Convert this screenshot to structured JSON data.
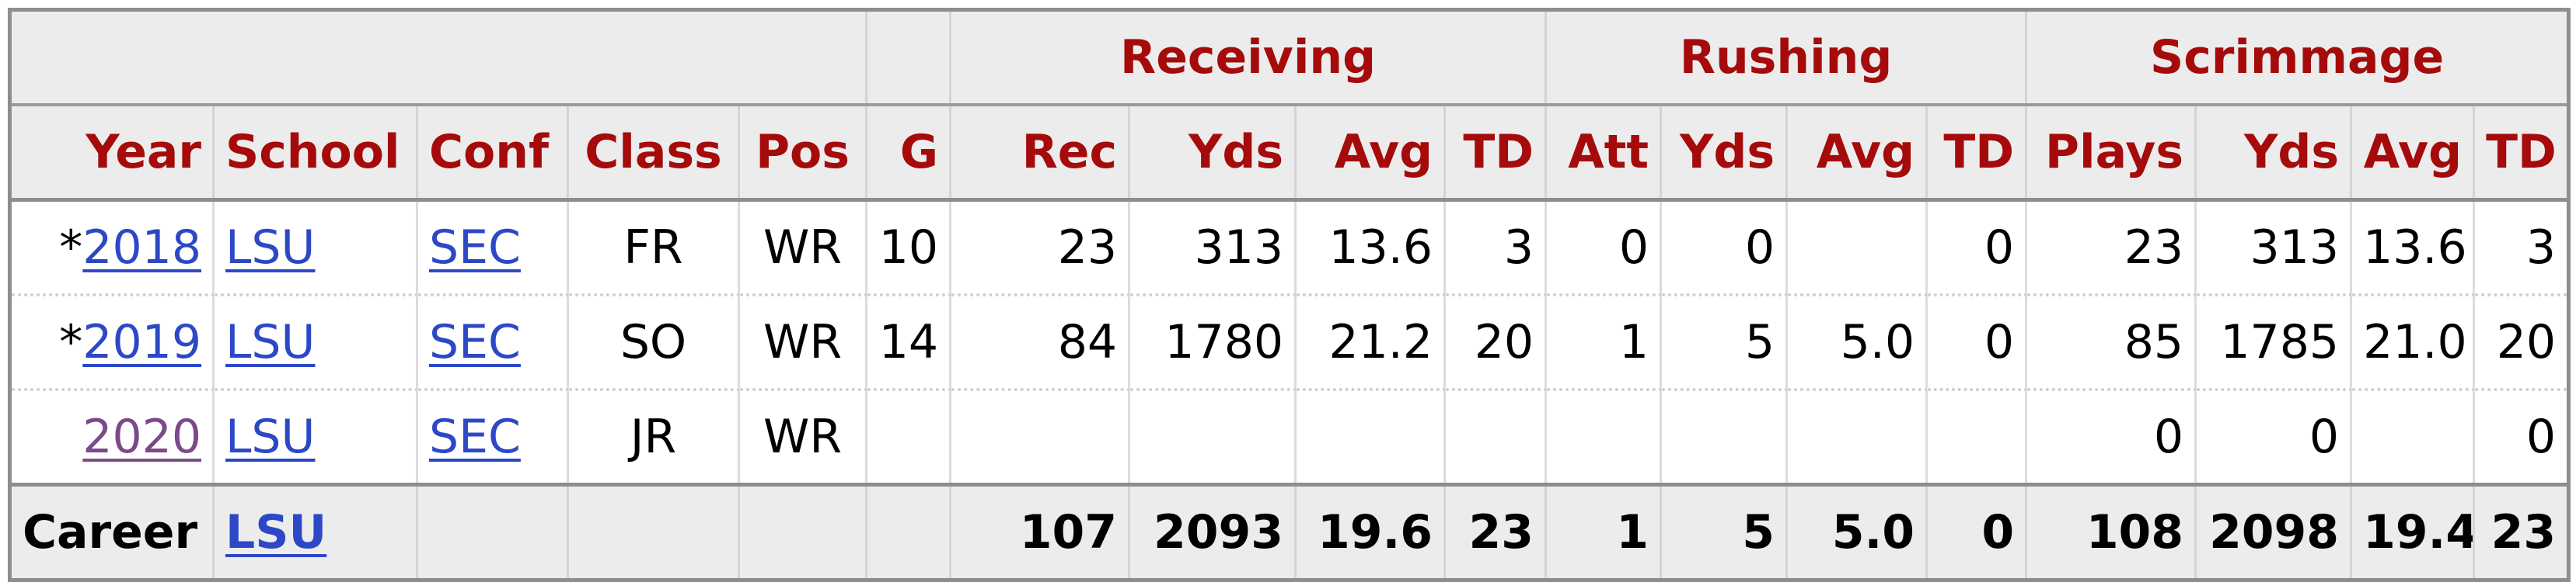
{
  "over_header": {
    "receiving": "Receiving",
    "rushing": "Rushing",
    "scrimmage": "Scrimmage"
  },
  "columns": {
    "year": "Year",
    "school": "School",
    "conf": "Conf",
    "class": "Class",
    "pos": "Pos",
    "g": "G",
    "rec": "Rec",
    "rec_yds": "Yds",
    "rec_avg": "Avg",
    "rec_td": "TD",
    "rush_att": "Att",
    "rush_yds": "Yds",
    "rush_avg": "Avg",
    "rush_td": "TD",
    "plays": "Plays",
    "scrim_yds": "Yds",
    "scrim_avg": "Avg",
    "scrim_td": "TD"
  },
  "rows": [
    {
      "mark": "*",
      "year": "2018",
      "school": "LSU",
      "conf": "SEC",
      "class": "FR",
      "pos": "WR",
      "g": "10",
      "rec": "23",
      "rec_yds": "313",
      "rec_avg": "13.6",
      "rec_td": "3",
      "rush_att": "0",
      "rush_yds": "0",
      "rush_avg": "",
      "rush_td": "0",
      "plays": "23",
      "scrim_yds": "313",
      "scrim_avg": "13.6",
      "scrim_td": "3"
    },
    {
      "mark": "*",
      "year": "2019",
      "school": "LSU",
      "conf": "SEC",
      "class": "SO",
      "pos": "WR",
      "g": "14",
      "rec": "84",
      "rec_yds": "1780",
      "rec_avg": "21.2",
      "rec_td": "20",
      "rush_att": "1",
      "rush_yds": "5",
      "rush_avg": "5.0",
      "rush_td": "0",
      "plays": "85",
      "scrim_yds": "1785",
      "scrim_avg": "21.0",
      "scrim_td": "20"
    },
    {
      "mark": "",
      "year": "2020",
      "school": "LSU",
      "conf": "SEC",
      "class": "JR",
      "pos": "WR",
      "g": "",
      "rec": "",
      "rec_yds": "",
      "rec_avg": "",
      "rec_td": "",
      "rush_att": "",
      "rush_yds": "",
      "rush_avg": "",
      "rush_td": "",
      "plays": "0",
      "scrim_yds": "0",
      "scrim_avg": "",
      "scrim_td": "0"
    }
  ],
  "career": {
    "label": "Career",
    "school": "LSU",
    "conf": "",
    "class": "",
    "pos": "",
    "g": "",
    "rec": "107",
    "rec_yds": "2093",
    "rec_avg": "19.6",
    "rec_td": "23",
    "rush_att": "1",
    "rush_yds": "5",
    "rush_avg": "5.0",
    "rush_td": "0",
    "plays": "108",
    "scrim_yds": "2098",
    "scrim_avg": "19.4",
    "scrim_td": "23"
  },
  "colors": {
    "header_text": "#a50b0b",
    "link": "#2c48c7",
    "visited_link": "#7c4a8b",
    "header_bg": "#ececec"
  }
}
